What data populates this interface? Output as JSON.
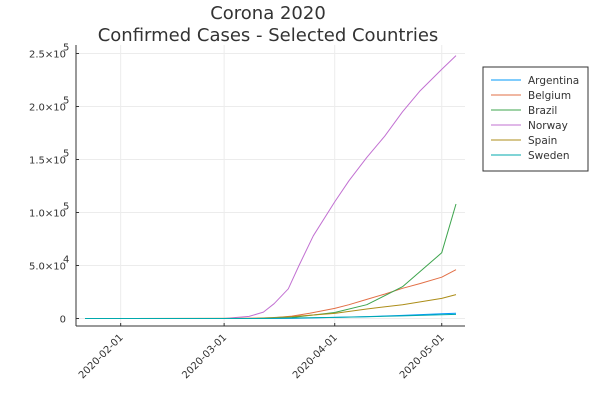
{
  "chart_data": {
    "type": "line",
    "title": [
      "Corona 2020",
      "Confirmed Cases - Selected Countries"
    ],
    "xlabel": "",
    "ylabel": "",
    "x_axis": {
      "kind": "date",
      "range": [
        "2020-01-22",
        "2020-05-05"
      ],
      "ticks": [
        "2020-02-01",
        "2020-03-01",
        "2020-04-01",
        "2020-05-01"
      ]
    },
    "y_axis": {
      "range": [
        0,
        250000
      ],
      "ticks": [
        {
          "value": 0,
          "mantissa": "0",
          "exponent": ""
        },
        {
          "value": 50000,
          "mantissa": "5.0×10",
          "exponent": "4"
        },
        {
          "value": 100000,
          "mantissa": "1.0×10",
          "exponent": "5"
        },
        {
          "value": 150000,
          "mantissa": "1.5×10",
          "exponent": "5"
        },
        {
          "value": 200000,
          "mantissa": "2.0×10",
          "exponent": "5"
        },
        {
          "value": 250000,
          "mantissa": "2.5×10",
          "exponent": "5"
        }
      ]
    },
    "grid": true,
    "legend": {
      "position": "top-right"
    },
    "series": [
      {
        "name": "Argentina",
        "color": "#009AFA",
        "points": [
          [
            "2020-01-22",
            0
          ],
          [
            "2020-03-10",
            20
          ],
          [
            "2020-03-20",
            130
          ],
          [
            "2020-04-01",
            1050
          ],
          [
            "2020-04-10",
            1800
          ],
          [
            "2020-04-20",
            2900
          ],
          [
            "2020-05-01",
            4400
          ],
          [
            "2020-05-05",
            4900
          ]
        ]
      },
      {
        "name": "Belgium",
        "color": "#E26F46",
        "points": [
          [
            "2020-01-22",
            0
          ],
          [
            "2020-03-05",
            100
          ],
          [
            "2020-03-15",
            690
          ],
          [
            "2020-03-20",
            2300
          ],
          [
            "2020-03-25",
            5000
          ],
          [
            "2020-04-01",
            9500
          ],
          [
            "2020-04-05",
            13000
          ],
          [
            "2020-04-10",
            18000
          ],
          [
            "2020-04-15",
            23000
          ],
          [
            "2020-04-20",
            28500
          ],
          [
            "2020-04-25",
            33000
          ],
          [
            "2020-05-01",
            39000
          ],
          [
            "2020-05-05",
            46000
          ]
        ]
      },
      {
        "name": "Brazil",
        "color": "#3DA44D",
        "points": [
          [
            "2020-01-22",
            0
          ],
          [
            "2020-03-10",
            30
          ],
          [
            "2020-03-20",
            900
          ],
          [
            "2020-04-01",
            5700
          ],
          [
            "2020-04-10",
            13000
          ],
          [
            "2020-04-20",
            30000
          ],
          [
            "2020-05-01",
            62000
          ],
          [
            "2020-05-05",
            108000
          ]
        ]
      },
      {
        "name": "Norway",
        "color": "#C271D2",
        "points": [
          [
            "2020-01-22",
            0
          ],
          [
            "2020-03-01",
            0
          ],
          [
            "2020-03-08",
            2000
          ],
          [
            "2020-03-12",
            6000
          ],
          [
            "2020-03-15",
            14000
          ],
          [
            "2020-03-19",
            28000
          ],
          [
            "2020-03-22",
            50000
          ],
          [
            "2020-03-26",
            78000
          ],
          [
            "2020-04-01",
            110000
          ],
          [
            "2020-04-05",
            130000
          ],
          [
            "2020-04-10",
            152000
          ],
          [
            "2020-04-15",
            172000
          ],
          [
            "2020-04-20",
            195000
          ],
          [
            "2020-04-25",
            215000
          ],
          [
            "2020-05-01",
            235000
          ],
          [
            "2020-05-05",
            248000
          ]
        ]
      },
      {
        "name": "Spain",
        "color": "#AC8D18",
        "points": [
          [
            "2020-01-22",
            0
          ],
          [
            "2020-03-10",
            100
          ],
          [
            "2020-03-20",
            1800
          ],
          [
            "2020-04-01",
            4800
          ],
          [
            "2020-04-10",
            9000
          ],
          [
            "2020-04-20",
            13000
          ],
          [
            "2020-05-01",
            19000
          ],
          [
            "2020-05-05",
            22500
          ]
        ]
      },
      {
        "name": "Sweden",
        "color": "#00A9AD",
        "points": [
          [
            "2020-01-22",
            0
          ],
          [
            "2020-03-10",
            30
          ],
          [
            "2020-03-20",
            500
          ],
          [
            "2020-04-01",
            1000
          ],
          [
            "2020-04-10",
            1700
          ],
          [
            "2020-04-20",
            2500
          ],
          [
            "2020-05-01",
            3500
          ],
          [
            "2020-05-05",
            3900
          ]
        ]
      }
    ]
  }
}
